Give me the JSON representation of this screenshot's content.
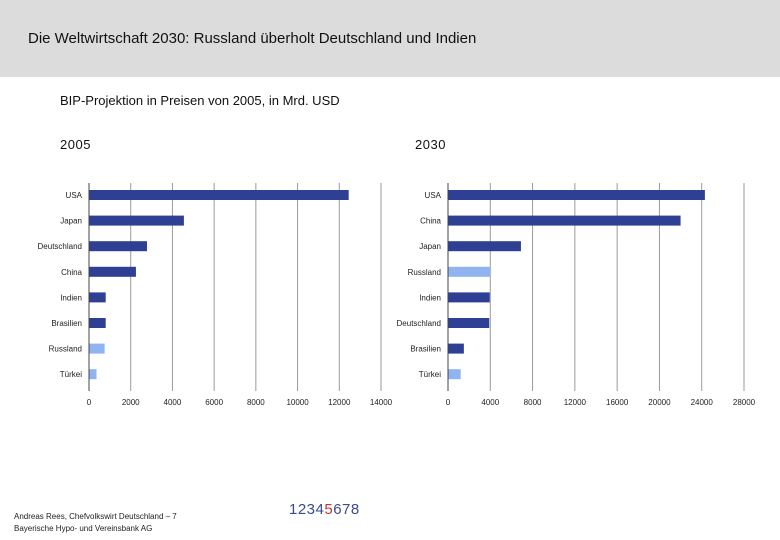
{
  "header": {
    "title": "Die Weltwirtschaft 2030: Russland überholt Deutschland und Indien"
  },
  "subtitle": "BIP-Projektion in Preisen von 2005, in Mrd. USD",
  "colors": {
    "bar_default": "#2e3f94",
    "bar_highlight": "#90b4f0",
    "header_bg": "#dcdcdc"
  },
  "chart_data": [
    {
      "type": "bar",
      "orientation": "horizontal",
      "title": "2005",
      "categories": [
        "USA",
        "Japan",
        "Deutschland",
        "China",
        "Indien",
        "Brasilien",
        "Russland",
        "Türkei"
      ],
      "values": [
        12450,
        4550,
        2780,
        2250,
        800,
        800,
        750,
        360
      ],
      "highlight": [
        "Russland",
        "Türkei"
      ],
      "xlim": [
        0,
        14000
      ],
      "xticks": [
        0,
        2000,
        4000,
        6000,
        8000,
        10000,
        12000,
        14000
      ],
      "grid": "vertical"
    },
    {
      "type": "bar",
      "orientation": "horizontal",
      "title": "2030",
      "categories": [
        "USA",
        "China",
        "Japan",
        "Russland",
        "Indien",
        "Deutschland",
        "Brasilien",
        "Türkei"
      ],
      "values": [
        24300,
        22000,
        6900,
        4000,
        3950,
        3900,
        1500,
        1200
      ],
      "highlight": [
        "Russland",
        "Türkei"
      ],
      "xlim": [
        0,
        28000
      ],
      "xticks": [
        0,
        4000,
        8000,
        12000,
        16000,
        20000,
        24000,
        28000
      ],
      "grid": "vertical"
    }
  ],
  "footer": {
    "line1": "Andreas Rees, Chefvolkswirt Deutschland – 7",
    "line2": "Bayerische Hypo- und Vereinsbank AG"
  },
  "pages": {
    "before": "1234",
    "current": "5",
    "after": "678"
  }
}
